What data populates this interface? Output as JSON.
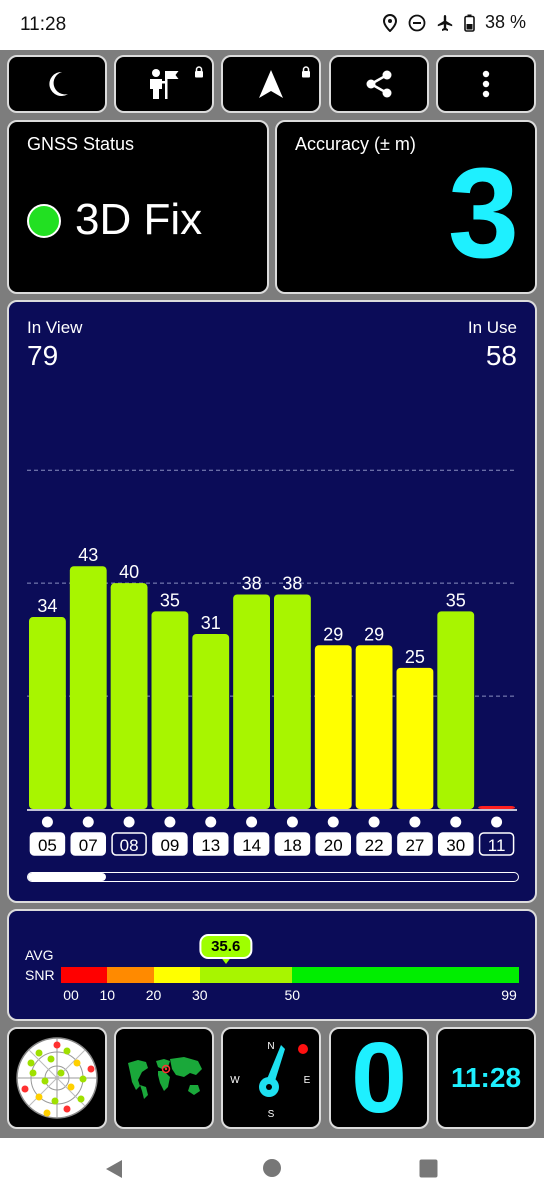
{
  "status_bar": {
    "time": "11:28",
    "battery": "38 %",
    "icons": [
      "location-pin-icon",
      "do-not-disturb-icon",
      "airplane-icon",
      "battery-icon"
    ]
  },
  "toolbar": {
    "buttons": [
      {
        "name": "night-mode-button",
        "icon": "moon-icon"
      },
      {
        "name": "tour-guide-button",
        "icon": "guide-flag-icon",
        "locked": true
      },
      {
        "name": "navigation-button",
        "icon": "navigation-arrow-icon",
        "locked": true
      },
      {
        "name": "share-button",
        "icon": "share-icon"
      },
      {
        "name": "more-options-button",
        "icon": "more-vert-icon"
      }
    ]
  },
  "gnss_status": {
    "title": "GNSS Status",
    "value": "3D Fix",
    "indicator_color": "#22e022"
  },
  "accuracy": {
    "title": "Accuracy (± m)",
    "value": "3",
    "color": "#1ef0ff"
  },
  "satellites": {
    "in_view_label": "In View",
    "in_view": "79",
    "in_use_label": "In Use",
    "in_use": "58"
  },
  "chart_data": {
    "type": "bar",
    "categories": [
      "05",
      "07",
      "08",
      "09",
      "13",
      "14",
      "18",
      "20",
      "22",
      "27",
      "30",
      "11"
    ],
    "values": [
      34,
      43,
      40,
      35,
      31,
      38,
      38,
      29,
      29,
      25,
      35,
      0
    ],
    "value_labels": [
      "34",
      "43",
      "40",
      "35",
      "31",
      "38",
      "38",
      "29",
      "29",
      "25",
      "35",
      ""
    ],
    "in_use": [
      true,
      true,
      false,
      true,
      true,
      true,
      true,
      true,
      true,
      true,
      true,
      false
    ],
    "ylim": [
      0,
      65
    ],
    "grid": true,
    "colors": {
      "high": "#a8f500",
      "mid": "#ffff00",
      "low": "#ff2020"
    }
  },
  "scroll": {
    "position": 0.16
  },
  "snr": {
    "label_line1": "AVG",
    "label_line2": "SNR",
    "value": "35.6",
    "value_numeric": 35.6,
    "scale_max": 99,
    "ticks": [
      "00",
      "10",
      "20",
      "30",
      "50",
      "99"
    ],
    "segments": [
      {
        "from": 0,
        "to": 10,
        "color": "#ff0000"
      },
      {
        "from": 10,
        "to": 20,
        "color": "#ff8a00"
      },
      {
        "from": 20,
        "to": 30,
        "color": "#ffff00"
      },
      {
        "from": 30,
        "to": 50,
        "color": "#a8f500"
      },
      {
        "from": 50,
        "to": 99,
        "color": "#00ee00"
      }
    ]
  },
  "bottom_tiles": {
    "radar_icon": "sky-plot-icon",
    "map_icon": "world-map-icon",
    "compass": {
      "n": "N",
      "s": "S",
      "e": "E",
      "w": "W"
    },
    "counter": "0",
    "clock": "11:28"
  },
  "nav_bar": [
    "back-icon",
    "home-icon",
    "recents-icon"
  ]
}
